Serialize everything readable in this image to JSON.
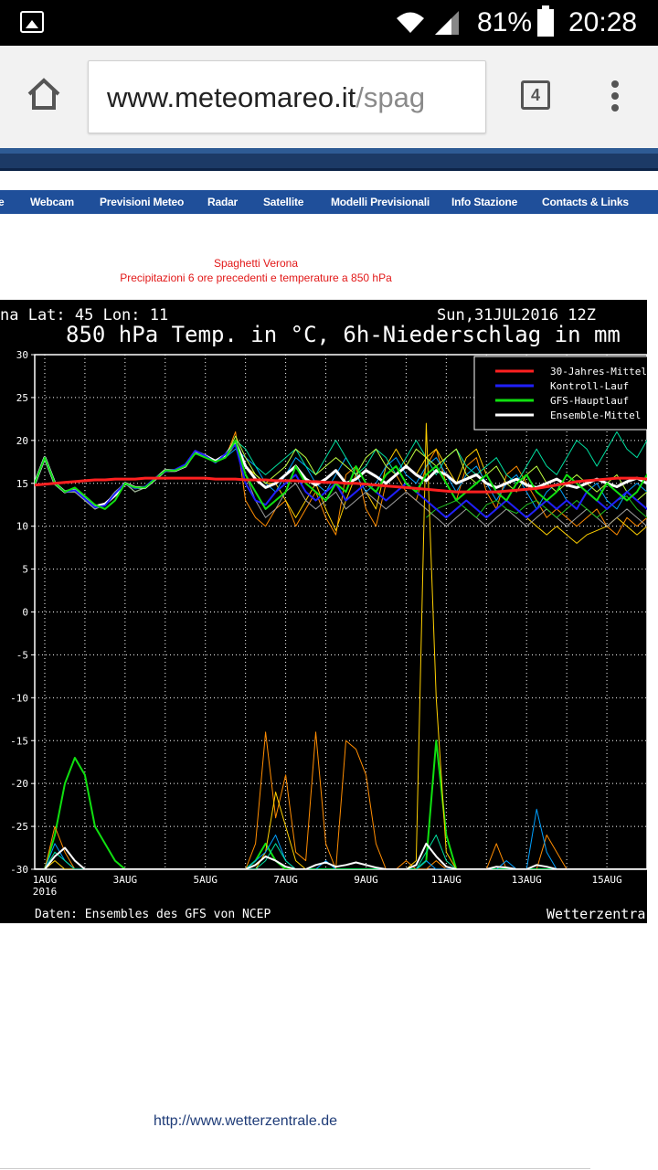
{
  "status_bar": {
    "battery_percent": "81%",
    "time": "20:28",
    "icons": [
      "gallery-icon",
      "wifi-icon",
      "signal-icon",
      "battery-icon"
    ]
  },
  "browser": {
    "url_host": "www.meteomareo.it",
    "url_path": "/spag",
    "tab_count": "4",
    "icons": [
      "home-icon",
      "overflow-menu-icon"
    ]
  },
  "nav": {
    "items": [
      "Webcam",
      "Previsioni Meteo",
      "Radar",
      "Satellite",
      "Modelli Previsionali",
      "Info Stazione",
      "Contacts & Links"
    ]
  },
  "page": {
    "caption_title": "Spaghetti Verona",
    "caption_subtitle": "Precipitazioni 6 ore precedenti e temperature a 850 hPa",
    "footer_link": "http://www.wetterzentrale.de"
  },
  "chart_data": {
    "type": "line",
    "header_left": "na  Lat: 45  Lon: 11",
    "header_right": "Sun,31JUL2016 12Z",
    "title": "850 hPa Temp. in °C, 6h-Niederschlag in mm",
    "footer_left": "Daten: Ensembles des GFS von NCEP",
    "footer_right": "Wetterzentra",
    "ylim": [
      -30,
      30
    ],
    "y_ticks": [
      "30",
      "25",
      "20",
      "15",
      "10",
      "5",
      "0",
      "-5",
      "-10",
      "-15",
      "-20",
      "-25",
      "-30"
    ],
    "x_ticks": [
      {
        "label": "1AUG",
        "label2": "2016",
        "day": 1
      },
      {
        "label": "3AUG",
        "day": 3
      },
      {
        "label": "5AUG",
        "day": 5
      },
      {
        "label": "7AUG",
        "day": 7
      },
      {
        "label": "9AUG",
        "day": 9
      },
      {
        "label": "11AUG",
        "day": 11
      },
      {
        "label": "13AUG",
        "day": 13
      },
      {
        "label": "15AUG",
        "day": 15
      }
    ],
    "x_step_days": 0.25,
    "xlim_days": [
      0.75,
      16.0
    ],
    "grid": true,
    "legend_position": "top-right",
    "legend": [
      {
        "name": "30-Jahres-Mittel",
        "color": "#ff2020"
      },
      {
        "name": "Kontroll-Lauf",
        "color": "#2020ff"
      },
      {
        "name": "GFS-Hauptlauf",
        "color": "#10e010"
      },
      {
        "name": "Ensemble-Mittel",
        "color": "#ffffff"
      }
    ],
    "temperature_series": [
      {
        "name": "30-Jahres-Mittel",
        "color": "#ff2020",
        "width": 3,
        "start_day": 0.75,
        "values": [
          14.8,
          14.9,
          15.0,
          15.1,
          15.2,
          15.3,
          15.4,
          15.4,
          15.5,
          15.5,
          15.5,
          15.6,
          15.6,
          15.6,
          15.6,
          15.6,
          15.6,
          15.6,
          15.5,
          15.5,
          15.5,
          15.4,
          15.4,
          15.4,
          15.3,
          15.3,
          15.3,
          15.2,
          15.2,
          15.1,
          15.1,
          15.0,
          15.0,
          14.9,
          14.8,
          14.7,
          14.6,
          14.5,
          14.4,
          14.3,
          14.2,
          14.1,
          14.0,
          14.0,
          14.0,
          14.0,
          14.0,
          14.1,
          14.2,
          14.3,
          14.4,
          14.6,
          14.8,
          15.0,
          15.2,
          15.3,
          15.4,
          15.5,
          15.6,
          15.6,
          15.6,
          15.5,
          15.4,
          15.3
        ]
      },
      {
        "name": "GFS-Hauptlauf",
        "color": "#10e010",
        "width": 2,
        "start_day": 0.75,
        "values": [
          15,
          18,
          15,
          14,
          14.5,
          13.5,
          12.5,
          12,
          13,
          15,
          14.5,
          14.5,
          15.5,
          16.5,
          16.5,
          17,
          18.5,
          18,
          17.5,
          18,
          20,
          16,
          14,
          12,
          13,
          14,
          17,
          15,
          14,
          13,
          15,
          14,
          17,
          15,
          14,
          16,
          17,
          15,
          14,
          16,
          17,
          15,
          13,
          14,
          15,
          16,
          14,
          13,
          15,
          16,
          14,
          13,
          14,
          16,
          15,
          14,
          13,
          15,
          14,
          13,
          14,
          16,
          15,
          14
        ]
      },
      {
        "name": "Kontroll-Lauf",
        "color": "#2020ff",
        "width": 2,
        "start_day": 0.75,
        "values": [
          15,
          18,
          15,
          14,
          14.2,
          13.2,
          12.2,
          12.4,
          13.8,
          15,
          14.4,
          14.6,
          15.6,
          16.4,
          16.6,
          17.2,
          18.8,
          18.2,
          17.4,
          18.4,
          19.5,
          15,
          13,
          12.5,
          14,
          15,
          16,
          14,
          13,
          14,
          15,
          13,
          14,
          15,
          14,
          13,
          14,
          15,
          14,
          13,
          12,
          11,
          12,
          13,
          12,
          11,
          12,
          13,
          12,
          11,
          12,
          13,
          12,
          13,
          12,
          14,
          13,
          12,
          13,
          14,
          13,
          12,
          13,
          14
        ]
      },
      {
        "name": "Ensemble-Mittel",
        "color": "#ffffff",
        "width": 3,
        "start_day": 0.75,
        "values": [
          15,
          18,
          15,
          14,
          14.3,
          13.3,
          12.3,
          12.6,
          13.6,
          15,
          14.5,
          14.5,
          15.5,
          16.5,
          16.5,
          17,
          18.7,
          18.2,
          17.6,
          18.3,
          19.8,
          17,
          15.5,
          14.5,
          15,
          16,
          17,
          15.5,
          14.8,
          15.5,
          16.5,
          15,
          15.5,
          16.5,
          15.8,
          15,
          16,
          17,
          16,
          15.3,
          16.5,
          16,
          15,
          15.5,
          16,
          15,
          14.5,
          15,
          15.5,
          14.8,
          14.5,
          15,
          15.5,
          14.8,
          14.5,
          15,
          15.5,
          15,
          14.6,
          15.2,
          15.6,
          15,
          14.8,
          15.3
        ]
      },
      {
        "name": "",
        "color": "#ff8c00",
        "width": 1,
        "start_day": 0.75,
        "values": [
          15,
          18,
          15,
          14,
          14,
          13,
          12,
          12.5,
          14,
          15,
          14,
          14.5,
          15.5,
          16.5,
          16.5,
          17,
          18.5,
          18,
          17.5,
          18,
          21,
          13,
          11,
          10,
          12,
          13,
          10,
          12,
          14,
          11,
          9,
          16,
          17,
          12,
          10,
          15,
          16,
          14,
          13,
          17,
          19,
          15,
          13,
          17,
          18,
          14,
          12,
          16,
          17,
          15,
          13,
          11,
          12,
          11,
          10,
          11,
          12,
          10,
          9,
          11,
          10,
          11,
          12,
          11
        ]
      },
      {
        "name": "",
        "color": "#ffd000",
        "width": 1,
        "start_day": 0.75,
        "values": [
          15,
          18,
          15,
          14,
          14,
          13,
          12,
          12.5,
          14,
          15,
          14,
          14.5,
          15.5,
          16.5,
          16.5,
          17,
          18.5,
          18,
          17.5,
          18,
          20,
          17,
          16,
          15,
          15,
          13,
          11,
          13,
          15,
          12,
          9.5,
          13,
          16,
          14,
          12,
          17,
          19,
          17,
          16,
          18,
          19,
          17,
          15,
          18,
          19,
          16,
          14,
          13,
          12,
          11,
          10,
          9,
          10,
          9,
          8,
          9,
          9.5,
          10,
          11,
          10,
          9,
          10,
          10,
          9.5
        ]
      },
      {
        "name": "",
        "color": "#00a0ff",
        "width": 1,
        "start_day": 0.75,
        "values": [
          15,
          18,
          15,
          14,
          14,
          13,
          12,
          12.5,
          14,
          15,
          14,
          14.5,
          15.5,
          16.5,
          16.5,
          17,
          18.5,
          18,
          17.5,
          18,
          19,
          18,
          17,
          15,
          14,
          16,
          18,
          17,
          15,
          14,
          16,
          18,
          16,
          14,
          15,
          17,
          18,
          16,
          15,
          17,
          18,
          16,
          14,
          16,
          17,
          15,
          13,
          15,
          16,
          14,
          12,
          14,
          15,
          13,
          12,
          14,
          15,
          13,
          12,
          14,
          15,
          14,
          13,
          14
        ]
      },
      {
        "name": "",
        "color": "#00e0a0",
        "width": 1,
        "start_day": 0.75,
        "values": [
          15,
          18,
          15,
          14,
          14,
          13,
          12,
          12.5,
          14,
          15,
          14,
          14.5,
          15.5,
          16.5,
          16.5,
          17,
          18.5,
          18,
          17.5,
          18,
          20,
          19,
          17,
          16,
          17,
          18,
          19,
          17,
          16,
          18,
          20,
          18,
          16,
          17,
          19,
          18,
          16,
          18,
          20,
          18,
          16,
          18,
          19,
          17,
          16,
          17,
          18,
          16,
          15,
          17,
          19,
          17,
          16,
          18,
          20,
          19,
          17,
          19,
          21,
          19,
          18,
          20,
          22,
          21
        ]
      },
      {
        "name": "",
        "color": "#c0ff40",
        "width": 1,
        "start_day": 0.75,
        "values": [
          15,
          18,
          15,
          14,
          14,
          13,
          12,
          12.5,
          14,
          15,
          14,
          14.5,
          15.5,
          16.5,
          16.5,
          17,
          18.5,
          18,
          17.5,
          18,
          20.5,
          18,
          16,
          15,
          16,
          17,
          19,
          18,
          16,
          17,
          18,
          17,
          16,
          18,
          19,
          17,
          16,
          17,
          19,
          18,
          17,
          18,
          19,
          16,
          15,
          16,
          17,
          15,
          14,
          16,
          17,
          15,
          14,
          15,
          16,
          15,
          14,
          15,
          16,
          14,
          13,
          14,
          15,
          14
        ]
      },
      {
        "name": "",
        "color": "#a0a0a0",
        "width": 1,
        "start_day": 0.75,
        "values": [
          15,
          18,
          15,
          14,
          14,
          13,
          12,
          12.5,
          14,
          15,
          14,
          14.5,
          15.5,
          16.5,
          16.5,
          17,
          18.5,
          18,
          17.5,
          18,
          19.5,
          16,
          13,
          11,
          12,
          14,
          15,
          13,
          12,
          13,
          14,
          12,
          13,
          14,
          13,
          12,
          13,
          14,
          13,
          12,
          11,
          10,
          11,
          12,
          11,
          10,
          11,
          12,
          11,
          10,
          11,
          12,
          11,
          10,
          11,
          12,
          11,
          10,
          11,
          12,
          11,
          10,
          11,
          12
        ]
      },
      {
        "name": "",
        "color": "#20c020",
        "width": 1,
        "start_day": 10.5,
        "values": [
          11,
          12,
          12.5,
          13,
          12,
          11,
          12.5,
          13,
          12,
          11.5,
          12.5,
          13,
          12,
          11,
          12,
          13,
          12,
          11,
          12,
          13,
          13.5,
          12,
          11,
          12.5,
          12,
          13
        ]
      }
    ],
    "precip_series": [
      {
        "name": "GFS-Hauptlauf",
        "color": "#10e010",
        "width": 2,
        "start_day": 0.75,
        "values": [
          0,
          0,
          4,
          10,
          13,
          11,
          5,
          3,
          1,
          0,
          0,
          0,
          0,
          0,
          0,
          0,
          0,
          0,
          0,
          0,
          0,
          0,
          1,
          3,
          1,
          0,
          0,
          0,
          0,
          0,
          0,
          0,
          0,
          0,
          0,
          0,
          0,
          0,
          0,
          1,
          15,
          4,
          0,
          0,
          0,
          0,
          0,
          0,
          0,
          0,
          0,
          0,
          0,
          0,
          0,
          0,
          0,
          0,
          0,
          0,
          0,
          0,
          0,
          0
        ]
      },
      {
        "name": "",
        "color": "#ff8c00",
        "width": 1,
        "start_day": 0.75,
        "values": [
          0,
          0,
          5,
          2,
          0,
          0,
          0,
          0,
          0,
          0,
          0,
          0,
          0,
          0,
          0,
          0,
          0,
          0,
          0,
          0,
          0,
          0,
          3,
          16,
          6,
          11,
          2,
          1,
          16,
          3,
          0,
          15,
          14,
          11,
          3,
          0,
          0,
          1,
          0,
          0,
          1,
          0,
          0,
          0,
          0,
          0,
          3,
          0,
          0,
          0,
          0,
          4,
          2,
          0,
          0,
          0,
          0,
          0,
          0,
          0,
          0,
          0,
          0,
          0
        ]
      },
      {
        "name": "",
        "color": "#ffd000",
        "width": 1,
        "start_day": 0.75,
        "values": [
          0,
          0,
          1,
          0,
          0,
          0,
          0,
          0,
          0,
          0,
          0,
          0,
          0,
          0,
          0,
          0,
          0,
          0,
          0,
          0,
          0,
          0,
          0,
          2,
          9,
          5,
          1,
          0,
          0,
          0,
          0,
          0,
          0,
          0,
          0,
          0,
          0,
          0,
          1,
          52,
          20,
          2,
          0,
          0,
          0,
          0,
          0,
          0,
          0,
          0,
          0,
          0,
          0,
          0,
          0,
          0,
          0,
          0,
          0,
          0,
          0,
          0,
          0,
          0
        ]
      },
      {
        "name": "",
        "color": "#00a0ff",
        "width": 1,
        "start_day": 0.75,
        "values": [
          0,
          0,
          3,
          1,
          0,
          0,
          0,
          0,
          0,
          0,
          0,
          0,
          0,
          0,
          0,
          0,
          0,
          0,
          0,
          0,
          0,
          0,
          1,
          2,
          4,
          1,
          0,
          0,
          0,
          1,
          0,
          0,
          0,
          0,
          0,
          0,
          0,
          0,
          0,
          1,
          0,
          0,
          0,
          0,
          0,
          0,
          0,
          1,
          0,
          0,
          7,
          2,
          0,
          0,
          0,
          0,
          0,
          0,
          0,
          0,
          0,
          0,
          1,
          0
        ]
      },
      {
        "name": "",
        "color": "#00e0a0",
        "width": 1,
        "start_day": 0.75,
        "values": [
          0,
          0,
          2,
          1,
          0,
          0,
          0,
          0,
          0,
          0,
          0,
          0,
          0,
          0,
          0,
          0,
          0,
          0,
          0,
          0,
          0,
          0,
          0,
          1,
          3,
          1,
          0,
          0,
          0,
          0,
          0,
          0,
          0,
          0,
          0,
          0,
          0,
          0,
          0,
          2,
          4,
          1,
          0,
          0,
          0,
          0,
          0,
          0,
          0,
          0,
          0,
          0,
          0,
          0,
          0,
          0,
          0,
          0,
          0,
          0,
          0,
          0,
          0,
          0
        ]
      },
      {
        "name": "Ensemble-Mittel",
        "color": "#ffffff",
        "width": 2,
        "start_day": 0.75,
        "values": [
          0,
          0,
          1.5,
          2.5,
          1,
          0,
          0,
          0,
          0,
          0,
          0,
          0,
          0,
          0,
          0,
          0,
          0,
          0,
          0,
          0,
          0,
          0,
          0.5,
          1.5,
          1,
          0.3,
          0,
          0,
          0.5,
          0.8,
          0.3,
          0.5,
          0.8,
          0.5,
          0.2,
          0,
          0,
          0,
          0.5,
          3,
          1.5,
          0.3,
          0,
          0,
          0,
          0,
          0.3,
          0.2,
          0,
          0,
          0.5,
          0.3,
          0,
          0,
          0,
          0,
          0,
          0,
          0,
          0,
          0,
          0,
          0,
          0
        ]
      }
    ]
  }
}
